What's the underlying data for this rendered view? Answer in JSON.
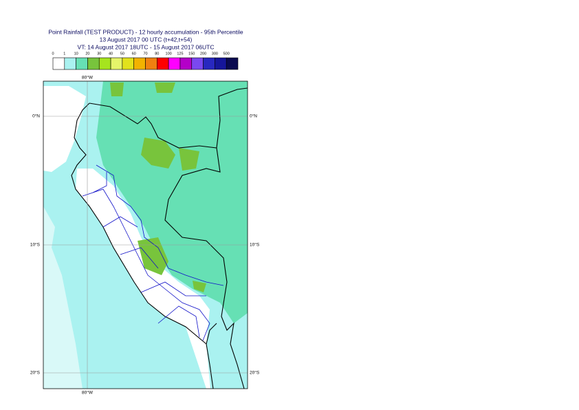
{
  "title_lines": [
    "Point Rainfall (TEST PRODUCT) - 12 hourly accumulation - 95th Percentile",
    "13 August 2017 00 UTC (t+42,t+54)",
    "VT: 14 August 2017 18UTC - 15 August 2017 06UTC"
  ],
  "legend": {
    "levels": [
      0,
      1,
      10,
      20,
      30,
      40,
      50,
      60,
      70,
      80,
      100,
      125,
      150,
      200,
      300,
      500
    ],
    "colors": [
      "#ffffff",
      "#aaf2f0",
      "#66e0b4",
      "#78c43c",
      "#a6e41e",
      "#e6f56a",
      "#e2e21c",
      "#f2b200",
      "#f08010",
      "#ff0000",
      "#ff00ff",
      "#b400c8",
      "#7a48f0",
      "#2828c0",
      "#16169a",
      "#0a0a50"
    ]
  },
  "map": {
    "lat_labels_left": [
      "0°N",
      "10°S",
      "20°S"
    ],
    "lat_labels_right": [
      "0°N",
      "10°S",
      "20°S"
    ],
    "lon_label_top": "80°W",
    "lon_label_bottom": "80°W"
  }
}
